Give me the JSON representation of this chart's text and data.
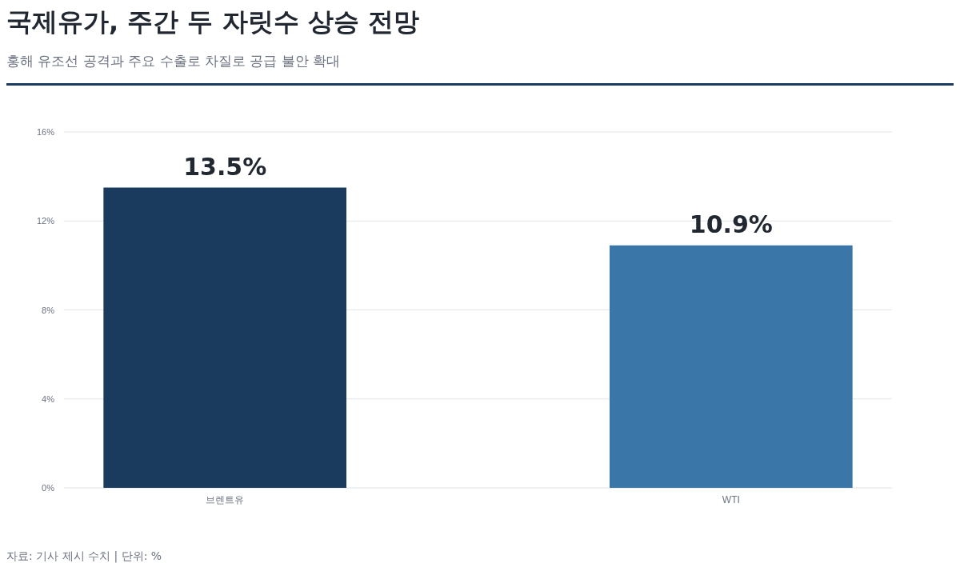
{
  "chart_data": {
    "type": "bar",
    "title": "국제유가, 주간 두 자릿수 상승 전망",
    "subtitle": "홍해 유조선 공격과 주요 수출로 차질로 공급 불안 확대",
    "categories": [
      "브렌트유",
      "WTI"
    ],
    "values": [
      13.5,
      10.9
    ],
    "colors": [
      "#1a3a5e",
      "#3a77a8"
    ],
    "value_labels": [
      "13.5%",
      "10.9%"
    ],
    "ylim": [
      0,
      16
    ],
    "yticks": [
      {
        "value": 0,
        "label": "0%"
      },
      {
        "value": 4,
        "label": "4%"
      },
      {
        "value": 8,
        "label": "8%"
      },
      {
        "value": 12,
        "label": "12%"
      },
      {
        "value": 16,
        "label": "16%"
      }
    ],
    "grid": "y",
    "annotations": [
      "자료: 기사 제시 수치 | 단위: %"
    ]
  }
}
